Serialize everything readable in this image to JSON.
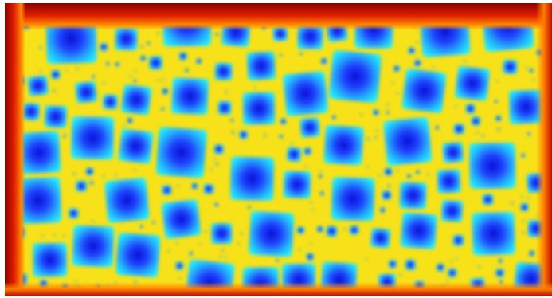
{
  "image": {
    "kind": "false-color heat map / distance transform of tiled square grains",
    "colormap": "jet",
    "palette": {
      "background": "#ffffff",
      "edge_dark_red": "#7a0000",
      "red": "#e01e00",
      "orange": "#ff8a00",
      "yellow": "#f4f21a",
      "cyan": "#1fe6ff",
      "light_blue": "#25a8ff",
      "blue": "#1f46ff",
      "deep_blue": "#0a0fd6"
    },
    "description_tags": [
      "grains",
      "squares",
      "cells",
      "gradient",
      "no-text"
    ]
  }
}
